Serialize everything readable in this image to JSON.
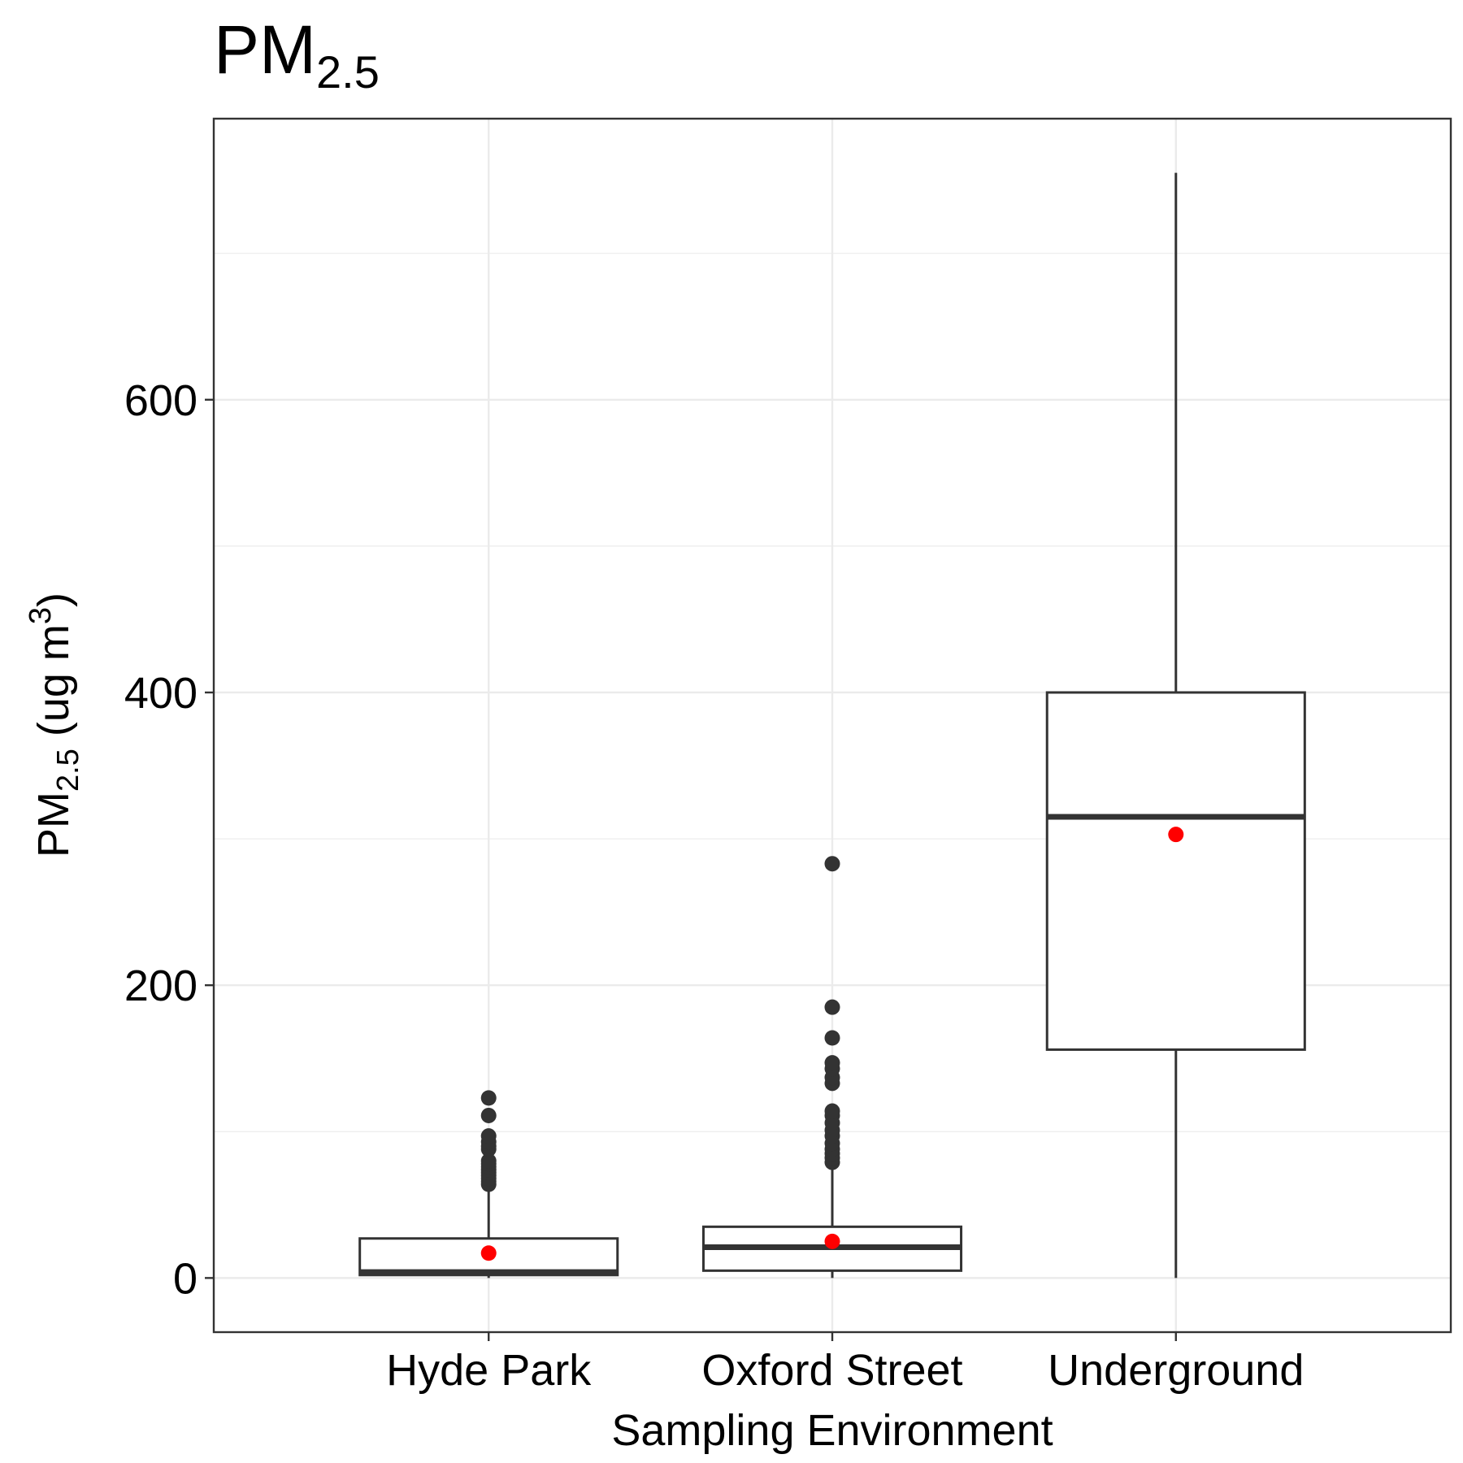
{
  "chart_data": {
    "type": "box",
    "title": {
      "main": "PM",
      "sub": "2.5"
    },
    "xlabel": "Sampling Environment",
    "ylabel": {
      "main": "PM",
      "sub": "2.5",
      "rest": " (ug m",
      "sup": "3",
      "end": ")"
    },
    "ylim": [
      -37,
      792
    ],
    "yticks": [
      0,
      200,
      400,
      600
    ],
    "yticks_minor": [
      100,
      300,
      500,
      700
    ],
    "grid": true,
    "categories": [
      "Hyde Park",
      "Oxford Street",
      "Underground"
    ],
    "boxes": [
      {
        "name": "Hyde Park",
        "whisker_low": 0,
        "q1": 2,
        "median": 4,
        "q3": 27,
        "whisker_high": 62,
        "mean": 17,
        "outliers": [
          64,
          66,
          68,
          70,
          72,
          74,
          76,
          78,
          80,
          88,
          90,
          93,
          97,
          111,
          123
        ]
      },
      {
        "name": "Oxford Street",
        "whisker_low": 0,
        "q1": 5,
        "median": 21,
        "q3": 35,
        "whisker_high": 76,
        "mean": 25,
        "outliers": [
          79,
          82,
          85,
          88,
          92,
          97,
          101,
          106,
          111,
          114,
          133,
          137,
          143,
          147,
          164,
          185,
          283
        ]
      },
      {
        "name": "Underground",
        "whisker_low": 0,
        "q1": 156,
        "median": 315,
        "q3": 400,
        "whisker_high": 755,
        "mean": 303,
        "outliers": []
      }
    ],
    "colors": {
      "box_line": "#333333",
      "box_fill": "#ffffff",
      "mean_point": "#ff0000",
      "outlier": "#333333",
      "grid": "#ebebeb",
      "panel_border": "#333333"
    }
  }
}
